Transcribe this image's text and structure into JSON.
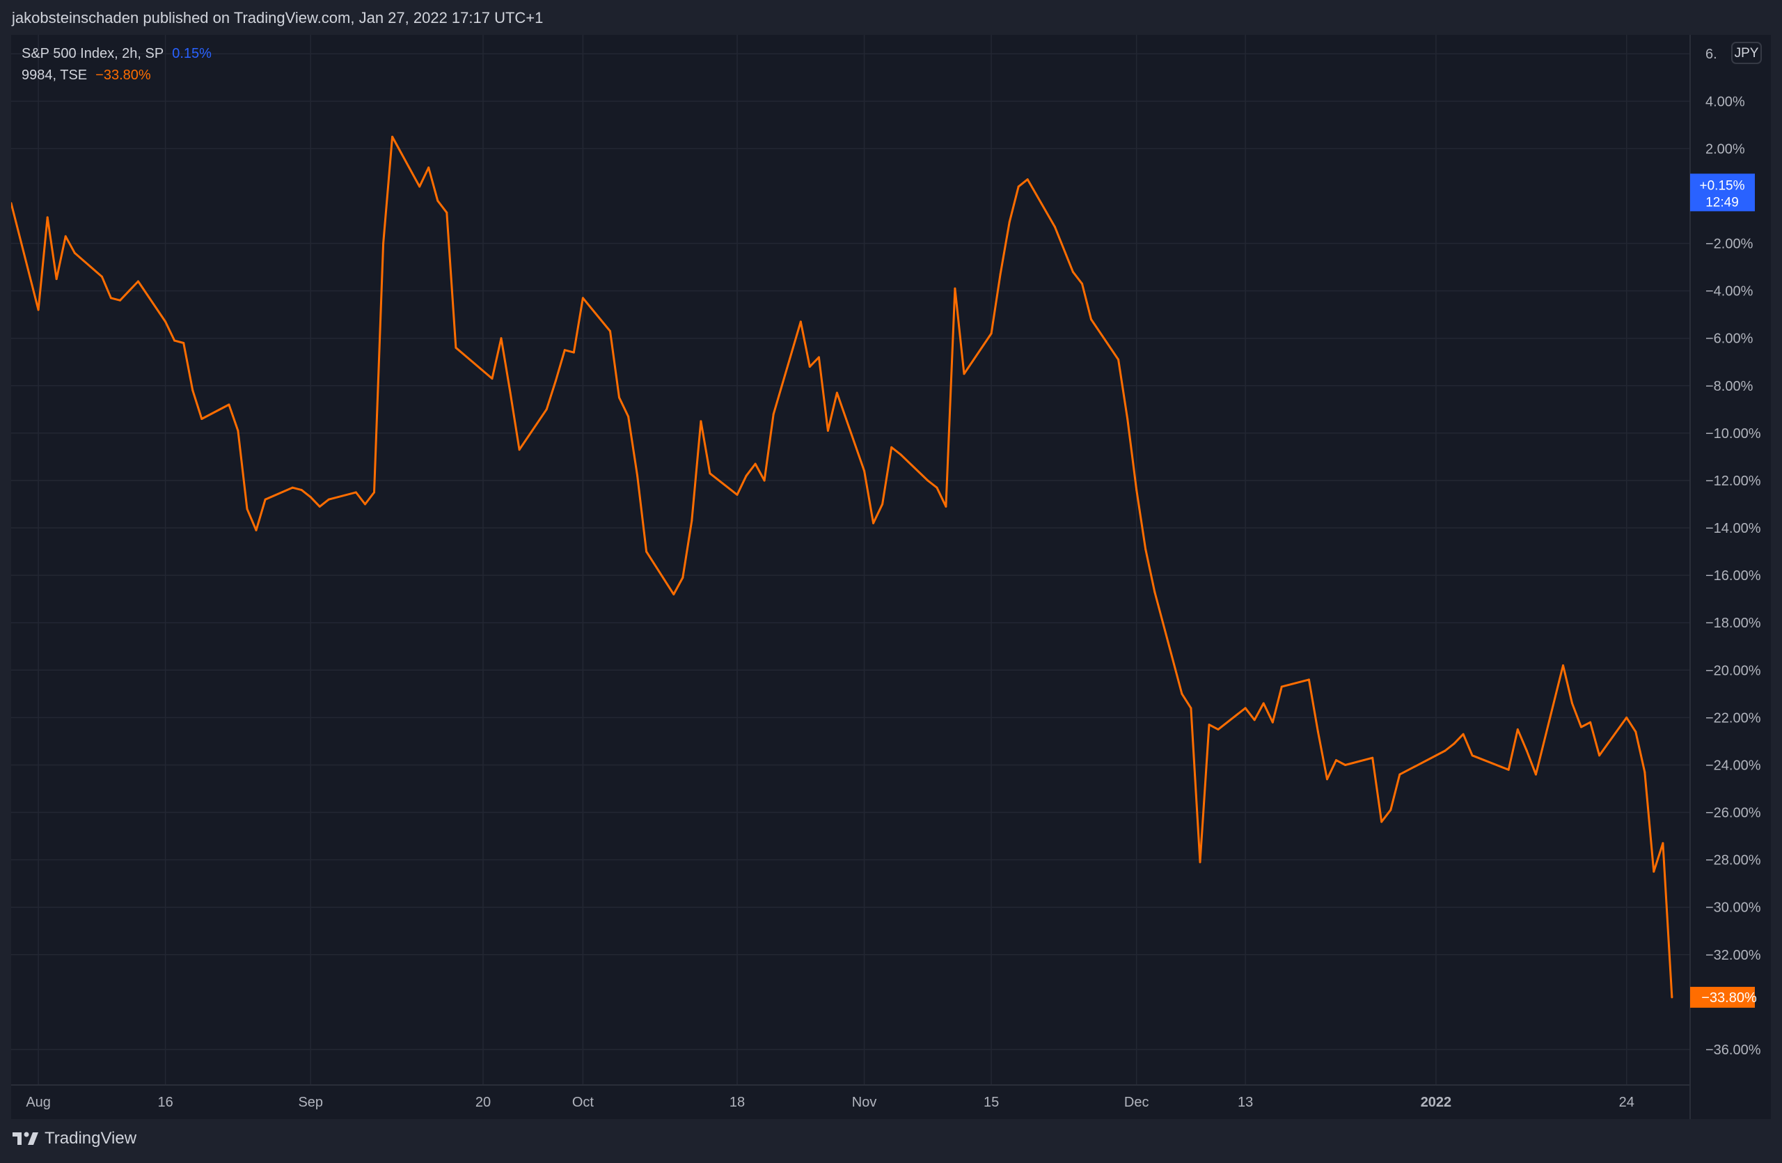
{
  "header": {
    "published_text": "jakobsteinschaden published on TradingView.com, Jan 27, 2022 17:17 UTC+1"
  },
  "legend": [
    {
      "name": "S&P 500 Index, 2h, SP",
      "value": "0.15%",
      "color": "#2962ff"
    },
    {
      "name": "9984, TSE",
      "value": "−33.80%",
      "color": "#ff6d00"
    }
  ],
  "currency_button": "JPY",
  "footer": {
    "brand": "TradingView"
  },
  "chart_data": {
    "type": "line",
    "title": "",
    "xlabel": "",
    "ylabel": "",
    "y_unit": "%",
    "ylim": [
      -37.5,
      6.8
    ],
    "y_ticks": [
      {
        "value": 6,
        "label": "6."
      },
      {
        "value": 4,
        "label": "4.00%"
      },
      {
        "value": 2,
        "label": "2.00%"
      },
      {
        "value": -2,
        "label": "−2.00%"
      },
      {
        "value": -4,
        "label": "−4.00%"
      },
      {
        "value": -6,
        "label": "−6.00%"
      },
      {
        "value": -8,
        "label": "−8.00%"
      },
      {
        "value": -10,
        "label": "−10.00%"
      },
      {
        "value": -12,
        "label": "−12.00%"
      },
      {
        "value": -14,
        "label": "−14.00%"
      },
      {
        "value": -16,
        "label": "−16.00%"
      },
      {
        "value": -18,
        "label": "−18.00%"
      },
      {
        "value": -20,
        "label": "−20.00%"
      },
      {
        "value": -22,
        "label": "−22.00%"
      },
      {
        "value": -24,
        "label": "−24.00%"
      },
      {
        "value": -26,
        "label": "−26.00%"
      },
      {
        "value": -28,
        "label": "−28.00%"
      },
      {
        "value": -30,
        "label": "−30.00%"
      },
      {
        "value": -32,
        "label": "−32.00%"
      },
      {
        "value": -36,
        "label": "−36.00%"
      }
    ],
    "x_range": [
      "2021-07-30",
      "2022-01-31"
    ],
    "x_ticks": [
      {
        "date": "2021-08-02",
        "label": "Aug",
        "bold": false
      },
      {
        "date": "2021-08-16",
        "label": "16",
        "bold": false
      },
      {
        "date": "2021-09-01",
        "label": "Sep",
        "bold": false
      },
      {
        "date": "2021-09-20",
        "label": "20",
        "bold": false
      },
      {
        "date": "2021-10-01",
        "label": "Oct",
        "bold": false
      },
      {
        "date": "2021-10-18",
        "label": "18",
        "bold": false
      },
      {
        "date": "2021-11-01",
        "label": "Nov",
        "bold": false
      },
      {
        "date": "2021-11-15",
        "label": "15",
        "bold": false
      },
      {
        "date": "2021-12-01",
        "label": "Dec",
        "bold": false
      },
      {
        "date": "2021-12-13",
        "label": "13",
        "bold": false
      },
      {
        "date": "2022-01-03",
        "label": "2022",
        "bold": true
      },
      {
        "date": "2022-01-24",
        "label": "24",
        "bold": false
      }
    ],
    "series": [
      {
        "name": "9984, TSE",
        "color": "#ff6d00",
        "points": [
          [
            "2021-07-30",
            -0.3
          ],
          [
            "2021-08-02",
            -4.8
          ],
          [
            "2021-08-03",
            -0.9
          ],
          [
            "2021-08-04",
            -3.5
          ],
          [
            "2021-08-05",
            -1.7
          ],
          [
            "2021-08-06",
            -2.4
          ],
          [
            "2021-08-09",
            -3.4
          ],
          [
            "2021-08-10",
            -4.3
          ],
          [
            "2021-08-11",
            -4.4
          ],
          [
            "2021-08-12",
            -4.0
          ],
          [
            "2021-08-13",
            -3.6
          ],
          [
            "2021-08-16",
            -5.3
          ],
          [
            "2021-08-17",
            -6.1
          ],
          [
            "2021-08-18",
            -6.2
          ],
          [
            "2021-08-19",
            -8.2
          ],
          [
            "2021-08-20",
            -9.4
          ],
          [
            "2021-08-23",
            -8.8
          ],
          [
            "2021-08-24",
            -9.9
          ],
          [
            "2021-08-25",
            -13.2
          ],
          [
            "2021-08-26",
            -14.1
          ],
          [
            "2021-08-27",
            -12.8
          ],
          [
            "2021-08-30",
            -12.3
          ],
          [
            "2021-08-31",
            -12.4
          ],
          [
            "2021-09-01",
            -12.7
          ],
          [
            "2021-09-02",
            -13.1
          ],
          [
            "2021-09-03",
            -12.8
          ],
          [
            "2021-09-06",
            -12.5
          ],
          [
            "2021-09-07",
            -13.0
          ],
          [
            "2021-09-08",
            -12.5
          ],
          [
            "2021-09-09",
            -2.0
          ],
          [
            "2021-09-10",
            2.5
          ],
          [
            "2021-09-13",
            0.4
          ],
          [
            "2021-09-14",
            1.2
          ],
          [
            "2021-09-15",
            -0.2
          ],
          [
            "2021-09-16",
            -0.7
          ],
          [
            "2021-09-17",
            -6.4
          ],
          [
            "2021-09-21",
            -7.7
          ],
          [
            "2021-09-22",
            -6.0
          ],
          [
            "2021-09-23",
            -8.3
          ],
          [
            "2021-09-24",
            -10.7
          ],
          [
            "2021-09-27",
            -9.0
          ],
          [
            "2021-09-28",
            -7.8
          ],
          [
            "2021-09-29",
            -6.5
          ],
          [
            "2021-09-30",
            -6.6
          ],
          [
            "2021-10-01",
            -4.3
          ],
          [
            "2021-10-04",
            -5.7
          ],
          [
            "2021-10-05",
            -8.5
          ],
          [
            "2021-10-06",
            -9.3
          ],
          [
            "2021-10-07",
            -11.8
          ],
          [
            "2021-10-08",
            -15.0
          ],
          [
            "2021-10-11",
            -16.8
          ],
          [
            "2021-10-12",
            -16.1
          ],
          [
            "2021-10-13",
            -13.7
          ],
          [
            "2021-10-14",
            -9.5
          ],
          [
            "2021-10-15",
            -11.7
          ],
          [
            "2021-10-18",
            -12.6
          ],
          [
            "2021-10-19",
            -11.8
          ],
          [
            "2021-10-20",
            -11.3
          ],
          [
            "2021-10-21",
            -12.0
          ],
          [
            "2021-10-22",
            -9.2
          ],
          [
            "2021-10-25",
            -5.3
          ],
          [
            "2021-10-26",
            -7.2
          ],
          [
            "2021-10-27",
            -6.8
          ],
          [
            "2021-10-28",
            -9.9
          ],
          [
            "2021-10-29",
            -8.3
          ],
          [
            "2021-11-01",
            -11.6
          ],
          [
            "2021-11-02",
            -13.8
          ],
          [
            "2021-11-03",
            -13.0
          ],
          [
            "2021-11-04",
            -10.6
          ],
          [
            "2021-11-05",
            -10.9
          ],
          [
            "2021-11-08",
            -12.0
          ],
          [
            "2021-11-09",
            -12.3
          ],
          [
            "2021-11-10",
            -13.1
          ],
          [
            "2021-11-11",
            -3.9
          ],
          [
            "2021-11-12",
            -7.5
          ],
          [
            "2021-11-15",
            -5.8
          ],
          [
            "2021-11-16",
            -3.3
          ],
          [
            "2021-11-17",
            -1.1
          ],
          [
            "2021-11-18",
            0.4
          ],
          [
            "2021-11-19",
            0.7
          ],
          [
            "2021-11-22",
            -1.3
          ],
          [
            "2021-11-24",
            -3.2
          ],
          [
            "2021-11-25",
            -3.7
          ],
          [
            "2021-11-26",
            -5.2
          ],
          [
            "2021-11-29",
            -6.9
          ],
          [
            "2021-11-30",
            -9.4
          ],
          [
            "2021-12-01",
            -12.4
          ],
          [
            "2021-12-02",
            -14.9
          ],
          [
            "2021-12-03",
            -16.7
          ],
          [
            "2021-12-06",
            -21.0
          ],
          [
            "2021-12-07",
            -21.6
          ],
          [
            "2021-12-08",
            -28.1
          ],
          [
            "2021-12-09",
            -22.3
          ],
          [
            "2021-12-10",
            -22.5
          ],
          [
            "2021-12-13",
            -21.6
          ],
          [
            "2021-12-14",
            -22.1
          ],
          [
            "2021-12-15",
            -21.4
          ],
          [
            "2021-12-16",
            -22.2
          ],
          [
            "2021-12-17",
            -20.7
          ],
          [
            "2021-12-20",
            -20.4
          ],
          [
            "2021-12-21",
            -22.6
          ],
          [
            "2021-12-22",
            -24.6
          ],
          [
            "2021-12-23",
            -23.8
          ],
          [
            "2021-12-24",
            -24.0
          ],
          [
            "2021-12-27",
            -23.7
          ],
          [
            "2021-12-28",
            -26.4
          ],
          [
            "2021-12-29",
            -25.9
          ],
          [
            "2021-12-30",
            -24.4
          ],
          [
            "2022-01-04",
            -23.4
          ],
          [
            "2022-01-05",
            -23.1
          ],
          [
            "2022-01-06",
            -22.7
          ],
          [
            "2022-01-07",
            -23.6
          ],
          [
            "2022-01-11",
            -24.2
          ],
          [
            "2022-01-12",
            -22.5
          ],
          [
            "2022-01-13",
            -23.4
          ],
          [
            "2022-01-14",
            -24.4
          ],
          [
            "2022-01-17",
            -19.8
          ],
          [
            "2022-01-18",
            -21.4
          ],
          [
            "2022-01-19",
            -22.4
          ],
          [
            "2022-01-20",
            -22.2
          ],
          [
            "2022-01-21",
            -23.6
          ],
          [
            "2022-01-24",
            -22.0
          ],
          [
            "2022-01-25",
            -22.6
          ],
          [
            "2022-01-26",
            -24.3
          ],
          [
            "2022-01-27",
            -28.5
          ],
          [
            "2022-01-28",
            -27.3
          ],
          [
            "2022-01-29",
            -33.8
          ]
        ]
      }
    ],
    "price_labels": [
      {
        "value": 0.15,
        "text": "+0.15%",
        "subtext": "12:49",
        "color": "#2962ff"
      },
      {
        "value": -33.8,
        "text": "−33.80%",
        "color": "#ff6d00"
      }
    ],
    "grid": true
  }
}
